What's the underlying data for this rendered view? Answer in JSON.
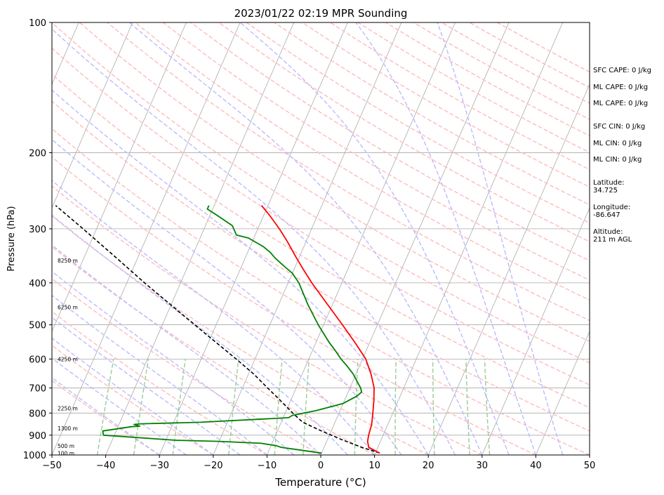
{
  "chart_data": {
    "type": "skew-t",
    "title": "2023/01/22 02:19 MPR Sounding",
    "xlabel": "Temperature (°C)",
    "ylabel": "Pressure (hPa)",
    "xlim": [
      -50,
      50
    ],
    "ylim": [
      1000,
      100
    ],
    "log_pressure": true,
    "skew_deg_per_decade": 35,
    "x_ticks": [
      -50,
      -40,
      -30,
      -20,
      -10,
      0,
      10,
      20,
      30,
      40,
      50
    ],
    "x_tick_labels": [
      "−50",
      "−40",
      "−30",
      "−20",
      "−10",
      "0",
      "10",
      "20",
      "30",
      "40",
      "50"
    ],
    "y_ticks": [
      100,
      200,
      300,
      400,
      500,
      600,
      700,
      800,
      900,
      1000
    ],
    "y_tick_labels": [
      "100",
      "200",
      "300",
      "400",
      "500",
      "600",
      "700",
      "800",
      "900",
      "1000"
    ],
    "grid": true,
    "colors": {
      "temperature": "#ff0000",
      "dewpoint": "#008000",
      "parcel": "#000000",
      "isotherm": "#aaaaaa",
      "dry_adiabat": "#ffbbbb",
      "moist_adiabat": "#bbbbff",
      "mixing_ratio": "#99cc99",
      "pressure_grid": "#aaaaaa"
    },
    "series": [
      {
        "key": "temperature",
        "p": [
          990,
          960,
          930,
          900,
          850,
          800,
          750,
          700,
          650,
          600,
          550,
          500,
          450,
          400,
          370,
          350,
          320,
          300,
          280,
          265
        ],
        "t": [
          10.8,
          8.3,
          7.6,
          7.3,
          7.0,
          6.3,
          5.5,
          4.5,
          2.8,
          0.6,
          -2.7,
          -6.5,
          -10.8,
          -15.6,
          -18.5,
          -20.5,
          -23.6,
          -26.0,
          -28.8,
          -31.2
        ]
      },
      {
        "key": "dewpoint",
        "p": [
          990,
          975,
          960,
          952,
          940,
          930,
          925,
          900,
          880,
          860,
          858,
          850,
          847,
          840,
          820,
          810,
          790,
          760,
          730,
          715,
          700,
          680,
          650,
          620,
          600,
          570,
          550,
          500,
          450,
          400,
          380,
          370,
          360,
          350,
          340,
          330,
          315,
          310,
          295,
          280,
          270,
          265
        ],
        "t": [
          0.0,
          -4.0,
          -8.0,
          -9.0,
          -12.0,
          -20.0,
          -28.0,
          -42.0,
          -42.5,
          -37.5,
          -36.0,
          -37.2,
          -36.0,
          -25.0,
          -9.0,
          -8.5,
          -4.5,
          0.0,
          2.0,
          2.5,
          2.0,
          1.0,
          -0.5,
          -2.5,
          -4.0,
          -6.0,
          -7.5,
          -11.0,
          -14.5,
          -18.0,
          -20.0,
          -21.5,
          -23.0,
          -24.5,
          -25.8,
          -27.5,
          -31.0,
          -33.5,
          -35.0,
          -38.5,
          -41.0,
          -41.0
        ]
      },
      {
        "key": "parcel",
        "p": [
          990,
          960,
          920,
          880,
          840,
          800,
          750,
          700,
          650,
          600,
          550,
          500,
          450,
          400,
          350,
          300,
          265
        ],
        "t": [
          10.8,
          7.0,
          2.5,
          -1.8,
          -6.0,
          -8.6,
          -11.8,
          -15.3,
          -19.0,
          -23.5,
          -28.5,
          -34.0,
          -40.0,
          -46.7,
          -54.0,
          -62.5,
          -69.5
        ]
      }
    ],
    "height_labels": [
      {
        "p": 355,
        "label": "8250 m"
      },
      {
        "p": 455,
        "label": "6250 m"
      },
      {
        "p": 600,
        "label": "4250 m"
      },
      {
        "p": 780,
        "label": "2250 m"
      },
      {
        "p": 868,
        "label": "1300 m"
      },
      {
        "p": 952,
        "label": "500 m"
      },
      {
        "p": 991,
        "label": "100 m"
      }
    ]
  },
  "info_panel": {
    "sfc_cape": "SFC CAPE: 0 J/kg",
    "ml_cape_1": "ML CAPE: 0 J/kg",
    "ml_cape_2": "ML CAPE: 0 J/kg",
    "sfc_cin": "SFC CIN: 0 J/kg",
    "ml_cin_1": "ML CIN: 0 J/kg",
    "ml_cin_2": "ML CIN: 0 J/kg",
    "latitude": "Latitude:\n34.725",
    "longitude": "Longitude:\n-86.647",
    "altitude": "Altitude:\n211 m AGL"
  }
}
